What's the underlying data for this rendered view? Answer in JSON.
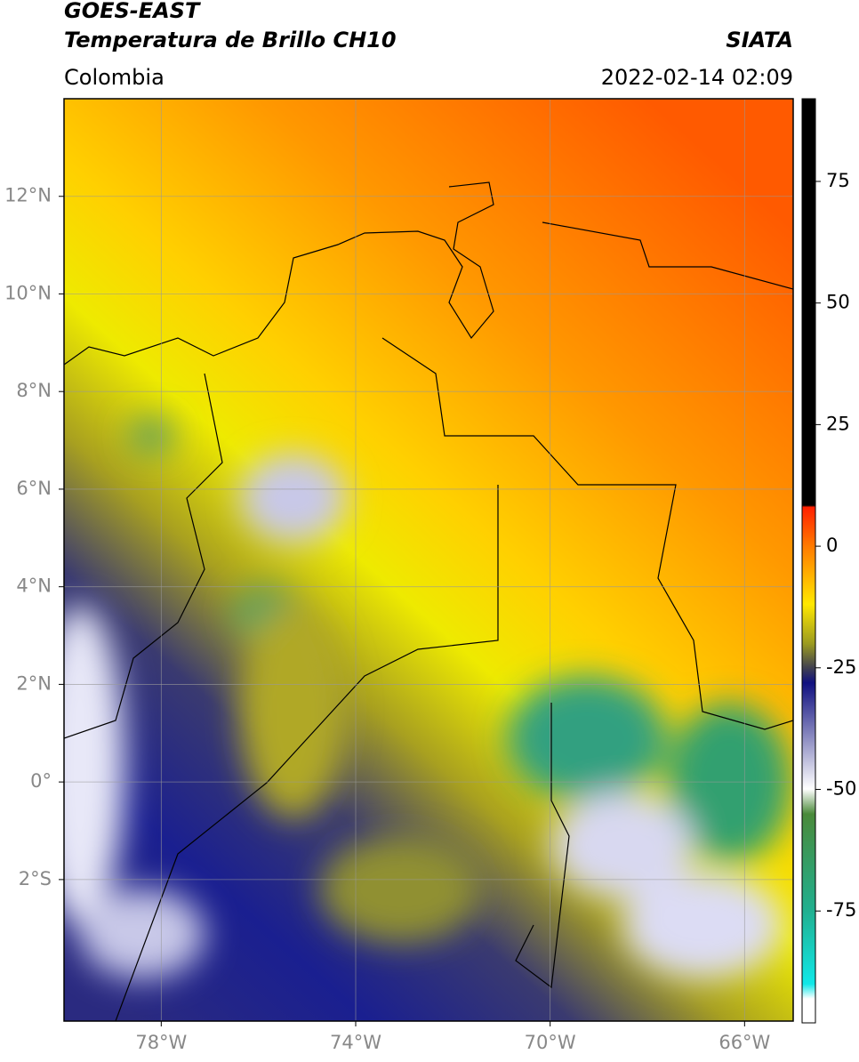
{
  "header": {
    "title": "GOES-EAST",
    "subtitle": "Temperatura de Brillo CH10",
    "source": "SIATA",
    "region": "Colombia",
    "datetime": "2022-02-14 02:09"
  },
  "map": {
    "xlim": [
      -80,
      -65
    ],
    "ylim": [
      -4.9,
      14
    ],
    "xticks": [
      {
        "value": -78,
        "label": "78°W"
      },
      {
        "value": -74,
        "label": "74°W"
      },
      {
        "value": -70,
        "label": "70°W"
      },
      {
        "value": -66,
        "label": "66°W"
      }
    ],
    "yticks": [
      {
        "value": 12,
        "label": "12°N"
      },
      {
        "value": 10,
        "label": "10°N"
      },
      {
        "value": 8,
        "label": "8°N"
      },
      {
        "value": 6,
        "label": "6°N"
      },
      {
        "value": 4,
        "label": "4°N"
      },
      {
        "value": 2,
        "label": "2°N"
      },
      {
        "value": 0,
        "label": "0°"
      },
      {
        "value": -2,
        "label": "2°S"
      }
    ],
    "grid": true
  },
  "colorbar": {
    "clim": [
      -98,
      92
    ],
    "ticks": [
      75,
      50,
      25,
      0,
      -25,
      -50,
      -75
    ]
  }
}
